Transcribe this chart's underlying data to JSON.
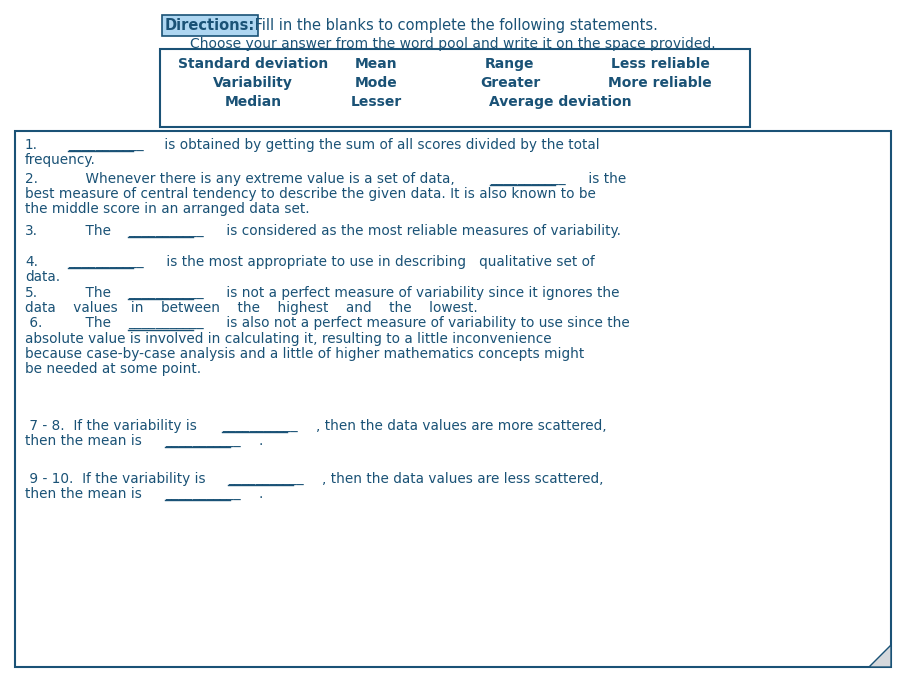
{
  "bg_color": "#ffffff",
  "text_color": "#1a5276",
  "directions_label": "Directions:",
  "directions_label_bg": "#aed6f1",
  "directions_text": " Fill in the blanks to complete the following statements.",
  "subtitle": "Choose your answer from the word pool and write it on the space provided.",
  "word_pool_row1": [
    "Standard deviation",
    "Mean",
    "Range",
    "Less reliable"
  ],
  "word_pool_row2": [
    "Variability",
    "Mode",
    "Greater",
    "More reliable"
  ],
  "word_pool_row3": [
    "Median",
    "Lesser",
    "Average deviation"
  ],
  "qc": "#1a5276",
  "qf": 9.8,
  "lh": 15.2,
  "wp_fs": 10,
  "title_fs": 10.5,
  "subtitle_fs": 10
}
